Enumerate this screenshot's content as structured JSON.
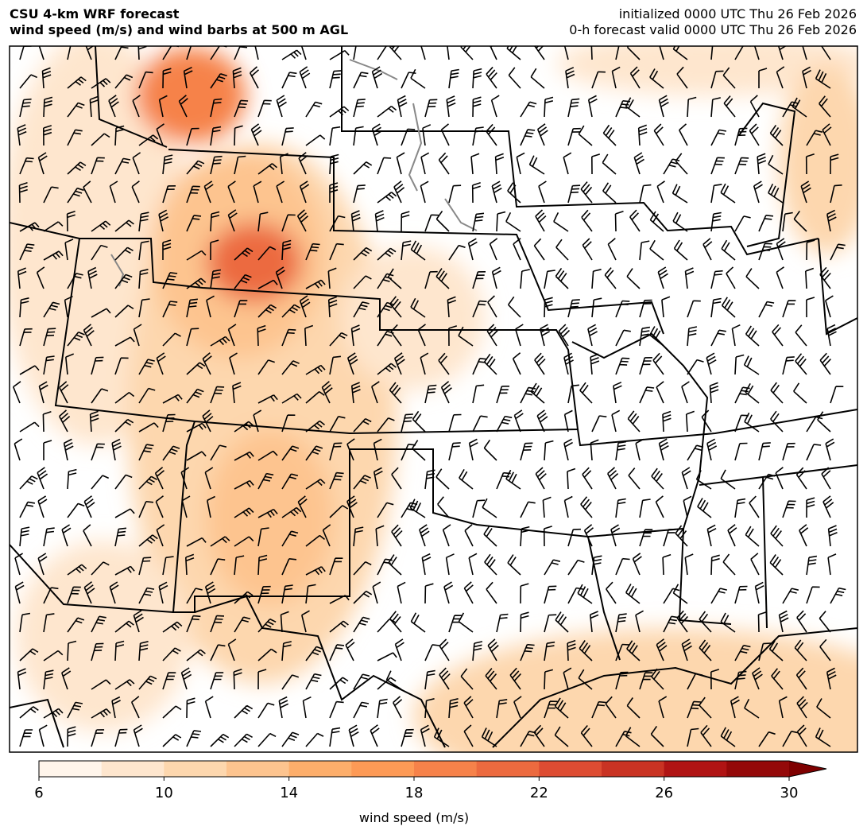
{
  "title": [
    "CSU 4-km WRF forecast",
    "wind speed (m/s) and wind barbs at 500 m AGL"
  ],
  "info": [
    "initialized 0000 UTC Thu 26 Feb 2026",
    "0-h forecast valid 0000 UTC Thu 26 Feb 2026"
  ],
  "colorbar": {
    "label": "wind speed (m/s)",
    "xlim": [
      6,
      30
    ],
    "xticks": [
      6,
      10,
      14,
      18,
      22,
      26,
      30
    ],
    "levels": [
      6,
      8,
      10,
      12,
      14,
      16,
      18,
      20,
      22,
      24,
      26,
      28,
      30
    ],
    "colors": [
      "#fff5eb",
      "#fee6ce",
      "#fdd7ae",
      "#fdc48f",
      "#fdae6b",
      "#fd9a56",
      "#f6824a",
      "#ec6a3f",
      "#dd4c32",
      "#c93323",
      "#b01414",
      "#940909"
    ],
    "over_color": "#7f0000"
  }
}
